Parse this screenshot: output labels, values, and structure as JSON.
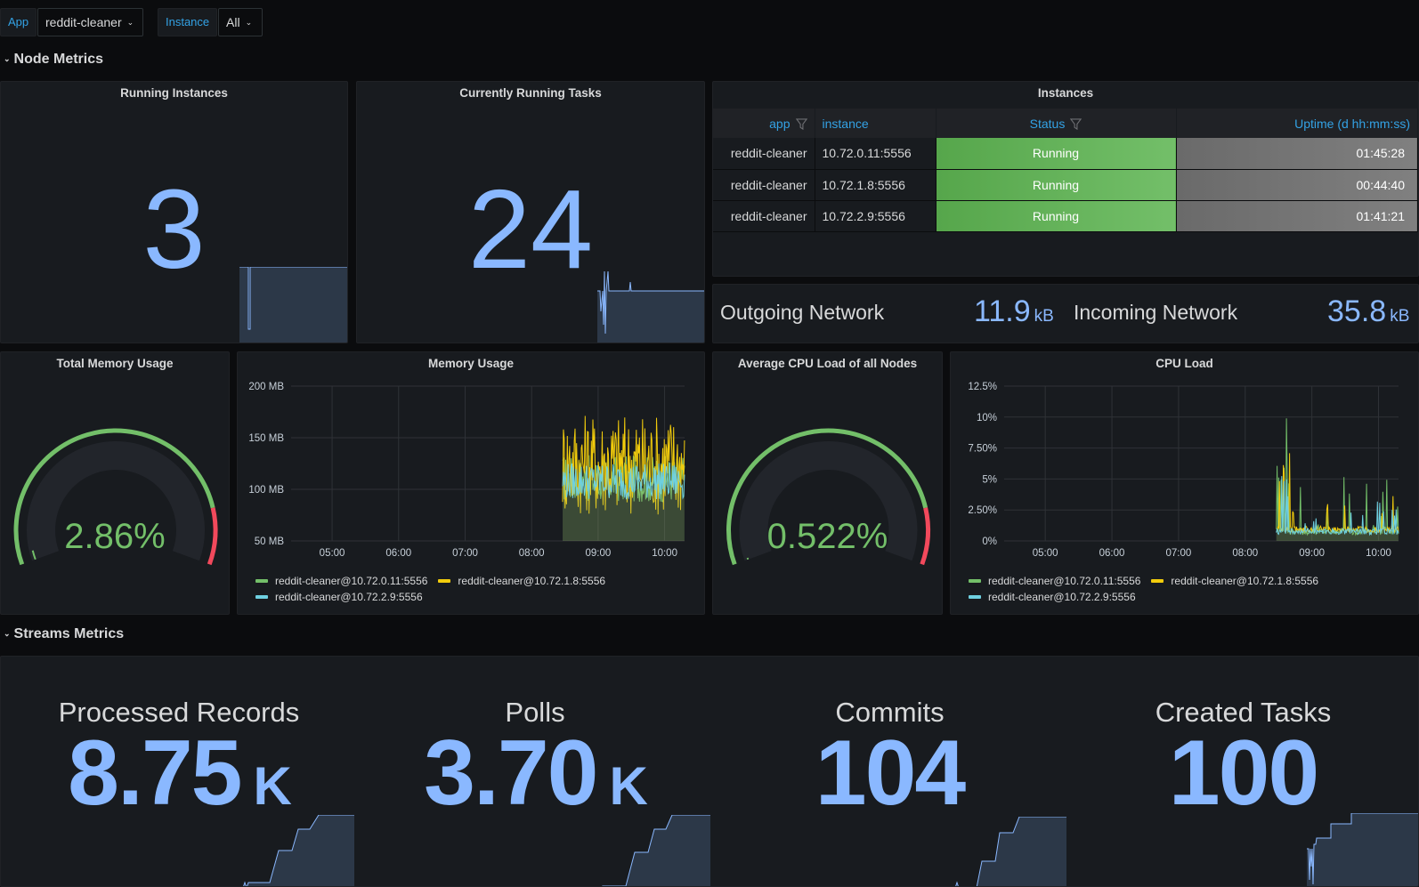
{
  "variables": [
    {
      "label": "App",
      "value": "reddit-cleaner"
    },
    {
      "label": "Instance",
      "value": "All"
    }
  ],
  "rows": {
    "node_metrics": "Node Metrics",
    "streams_metrics": "Streams Metrics"
  },
  "running_instances": {
    "title": "Running Instances",
    "value": "3"
  },
  "running_tasks": {
    "title": "Currently Running Tasks",
    "value": "24"
  },
  "instances_table": {
    "title": "Instances",
    "columns": [
      "app",
      "instance",
      "Status",
      "Uptime (d hh:mm:ss)"
    ],
    "rows": [
      {
        "app": "reddit-cleaner",
        "instance": "10.72.0.11:5556",
        "status": "Running",
        "uptime": "01:45:28"
      },
      {
        "app": "reddit-cleaner",
        "instance": "10.72.1.8:5556",
        "status": "Running",
        "uptime": "00:44:40"
      },
      {
        "app": "reddit-cleaner",
        "instance": "10.72.2.9:5556",
        "status": "Running",
        "uptime": "01:41:21"
      }
    ]
  },
  "network": {
    "outgoing_label": "Outgoing Network",
    "outgoing_value": "11.9",
    "outgoing_unit": "kB",
    "incoming_label": "Incoming Network",
    "incoming_value": "35.8",
    "incoming_unit": "kB"
  },
  "total_memory": {
    "title": "Total Memory Usage",
    "value": "2.86%",
    "percent": 2.86,
    "threshold_red_percent": 85
  },
  "avg_cpu": {
    "title": "Average CPU Load of all Nodes",
    "value": "0.522%",
    "percent": 0.522,
    "threshold_red_percent": 85
  },
  "colors": {
    "series_green": "#73bf69",
    "series_yellow": "#f2cc0c",
    "series_cyan": "#6ed0e0",
    "stat_blue": "#8ab8ff",
    "gauge_green": "#73bf69",
    "gauge_red": "#f2495c",
    "link_blue": "#33a2e5"
  },
  "chart_data": [
    {
      "type": "line",
      "title": "Memory Usage",
      "xlabel": "",
      "ylabel": "",
      "x_ticks": [
        "05:00",
        "06:00",
        "07:00",
        "08:00",
        "09:00",
        "10:00"
      ],
      "xlim": [
        "04:23",
        "10:18"
      ],
      "y_ticks": [
        "200 MB",
        "150 MB",
        "100 MB",
        "50 MB"
      ],
      "ylim": [
        50,
        200
      ],
      "y_unit": "MB",
      "grid": true,
      "legend": "bottom",
      "series": [
        {
          "name": "reddit-cleaner@10.72.0.11:5556",
          "color": "#73bf69",
          "start": "08:28",
          "range": [
            88,
            165
          ],
          "typical": 110
        },
        {
          "name": "reddit-cleaner@10.72.1.8:5556",
          "color": "#f2cc0c",
          "start": "08:28",
          "range": [
            75,
            185
          ],
          "typical": 125
        },
        {
          "name": "reddit-cleaner@10.72.2.9:5556",
          "color": "#6ed0e0",
          "start": "08:28",
          "range": [
            85,
            145
          ],
          "typical": 108
        }
      ]
    },
    {
      "type": "line",
      "title": "CPU Load",
      "xlabel": "",
      "ylabel": "",
      "x_ticks": [
        "05:00",
        "06:00",
        "07:00",
        "08:00",
        "09:00",
        "10:00"
      ],
      "xlim": [
        "04:23",
        "10:18"
      ],
      "y_ticks": [
        "12.5%",
        "10%",
        "7.50%",
        "5%",
        "2.50%",
        "0%"
      ],
      "ylim": [
        0,
        12.5
      ],
      "y_unit": "%",
      "grid": true,
      "legend": "bottom",
      "series": [
        {
          "name": "reddit-cleaner@10.72.0.11:5556",
          "color": "#73bf69",
          "start": "08:28",
          "peak": 9.9,
          "typical": 0.5
        },
        {
          "name": "reddit-cleaner@10.72.1.8:5556",
          "color": "#f2cc0c",
          "start": "08:28",
          "peak": 6.5,
          "typical": 0.7
        },
        {
          "name": "reddit-cleaner@10.72.2.9:5556",
          "color": "#6ed0e0",
          "start": "08:28",
          "peak": 4.8,
          "typical": 0.5
        }
      ]
    }
  ],
  "streams": [
    {
      "title": "Processed Records",
      "value": "8.75",
      "unit": "K"
    },
    {
      "title": "Polls",
      "value": "3.70",
      "unit": "K"
    },
    {
      "title": "Commits",
      "value": "104",
      "unit": ""
    },
    {
      "title": "Created Tasks",
      "value": "100",
      "unit": ""
    }
  ]
}
